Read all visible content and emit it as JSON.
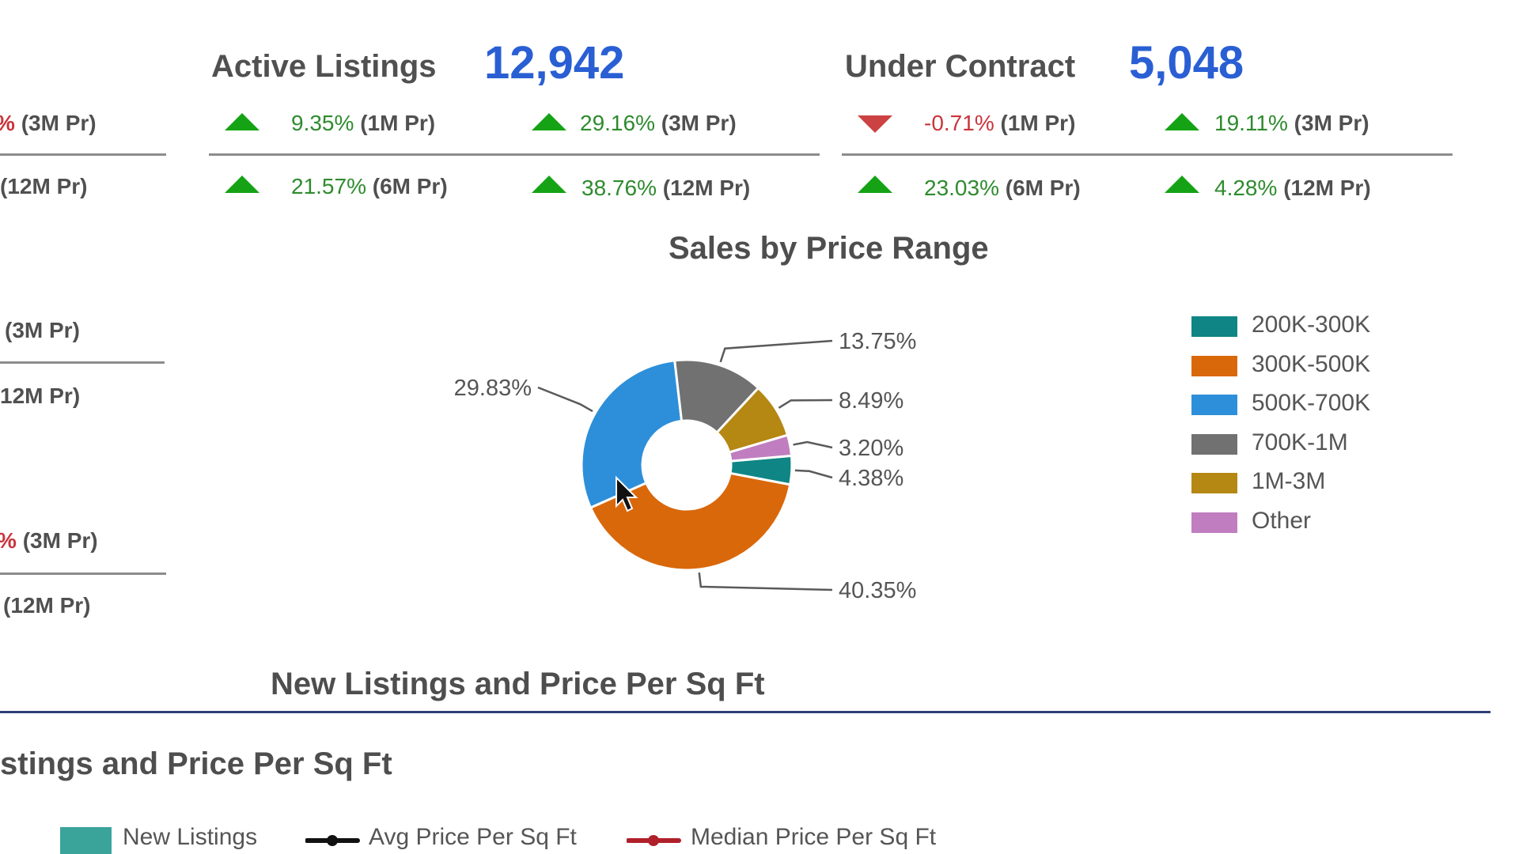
{
  "kpis": {
    "active": {
      "title": "Active Listings",
      "value": "12,942",
      "m1": {
        "pct": "9.35%",
        "period": "(1M Pr)"
      },
      "m3": {
        "pct": "29.16%",
        "period": "(3M Pr)"
      },
      "m6": {
        "pct": "21.57%",
        "period": "(6M Pr)"
      },
      "m12": {
        "pct": "38.76%",
        "period": "(12M Pr)"
      }
    },
    "contract": {
      "title": "Under Contract",
      "value": "5,048",
      "m1": {
        "pct": "-0.71%",
        "period": "(1M Pr)"
      },
      "m3": {
        "pct": "19.11%",
        "period": "(3M Pr)"
      },
      "m6": {
        "pct": "23.03%",
        "period": "(6M Pr)"
      },
      "m12": {
        "pct": "4.28%",
        "period": "(12M Pr)"
      }
    }
  },
  "left_fragments": {
    "r1": {
      "pct": "%",
      "period": "(3M Pr)"
    },
    "r2": {
      "period": "(12M Pr)"
    },
    "r3": {
      "period": "(3M Pr)"
    },
    "r4": {
      "period": "12M Pr)"
    },
    "r5": {
      "pct": "%",
      "period": "(3M Pr)"
    },
    "r6": {
      "period": "(12M Pr)"
    }
  },
  "colors": {
    "up": "#15a315",
    "down": "#cc4242",
    "kpi_value": "#2a5fd4"
  },
  "chart_data": {
    "type": "pie",
    "title": "Sales by Price Range",
    "categories": [
      "200K-300K",
      "300K-500K",
      "500K-700K",
      "700K-1M",
      "1M-3M",
      "Other"
    ],
    "values": [
      4.38,
      40.35,
      29.83,
      13.75,
      8.49,
      3.2
    ],
    "labels": [
      "4.38%",
      "40.35%",
      "29.83%",
      "13.75%",
      "8.49%",
      "3.20%"
    ],
    "colors": [
      "#0f8585",
      "#d9680b",
      "#2d8fd9",
      "#717171",
      "#b58713",
      "#c07ec0"
    ],
    "legend_position": "right",
    "donut": true
  },
  "section_titles": {
    "new_listings": "New Listings and Price Per Sq Ft",
    "new_listings_cut": "stings and Price Per Sq Ft"
  },
  "bottom_legend": {
    "new_listings": "New Listings",
    "avg": "Avg Price Per Sq Ft",
    "median": "Median Price Per Sq Ft",
    "colors": {
      "new_listings": "#3aa39a",
      "avg": "#111111",
      "median": "#b0202a"
    }
  }
}
